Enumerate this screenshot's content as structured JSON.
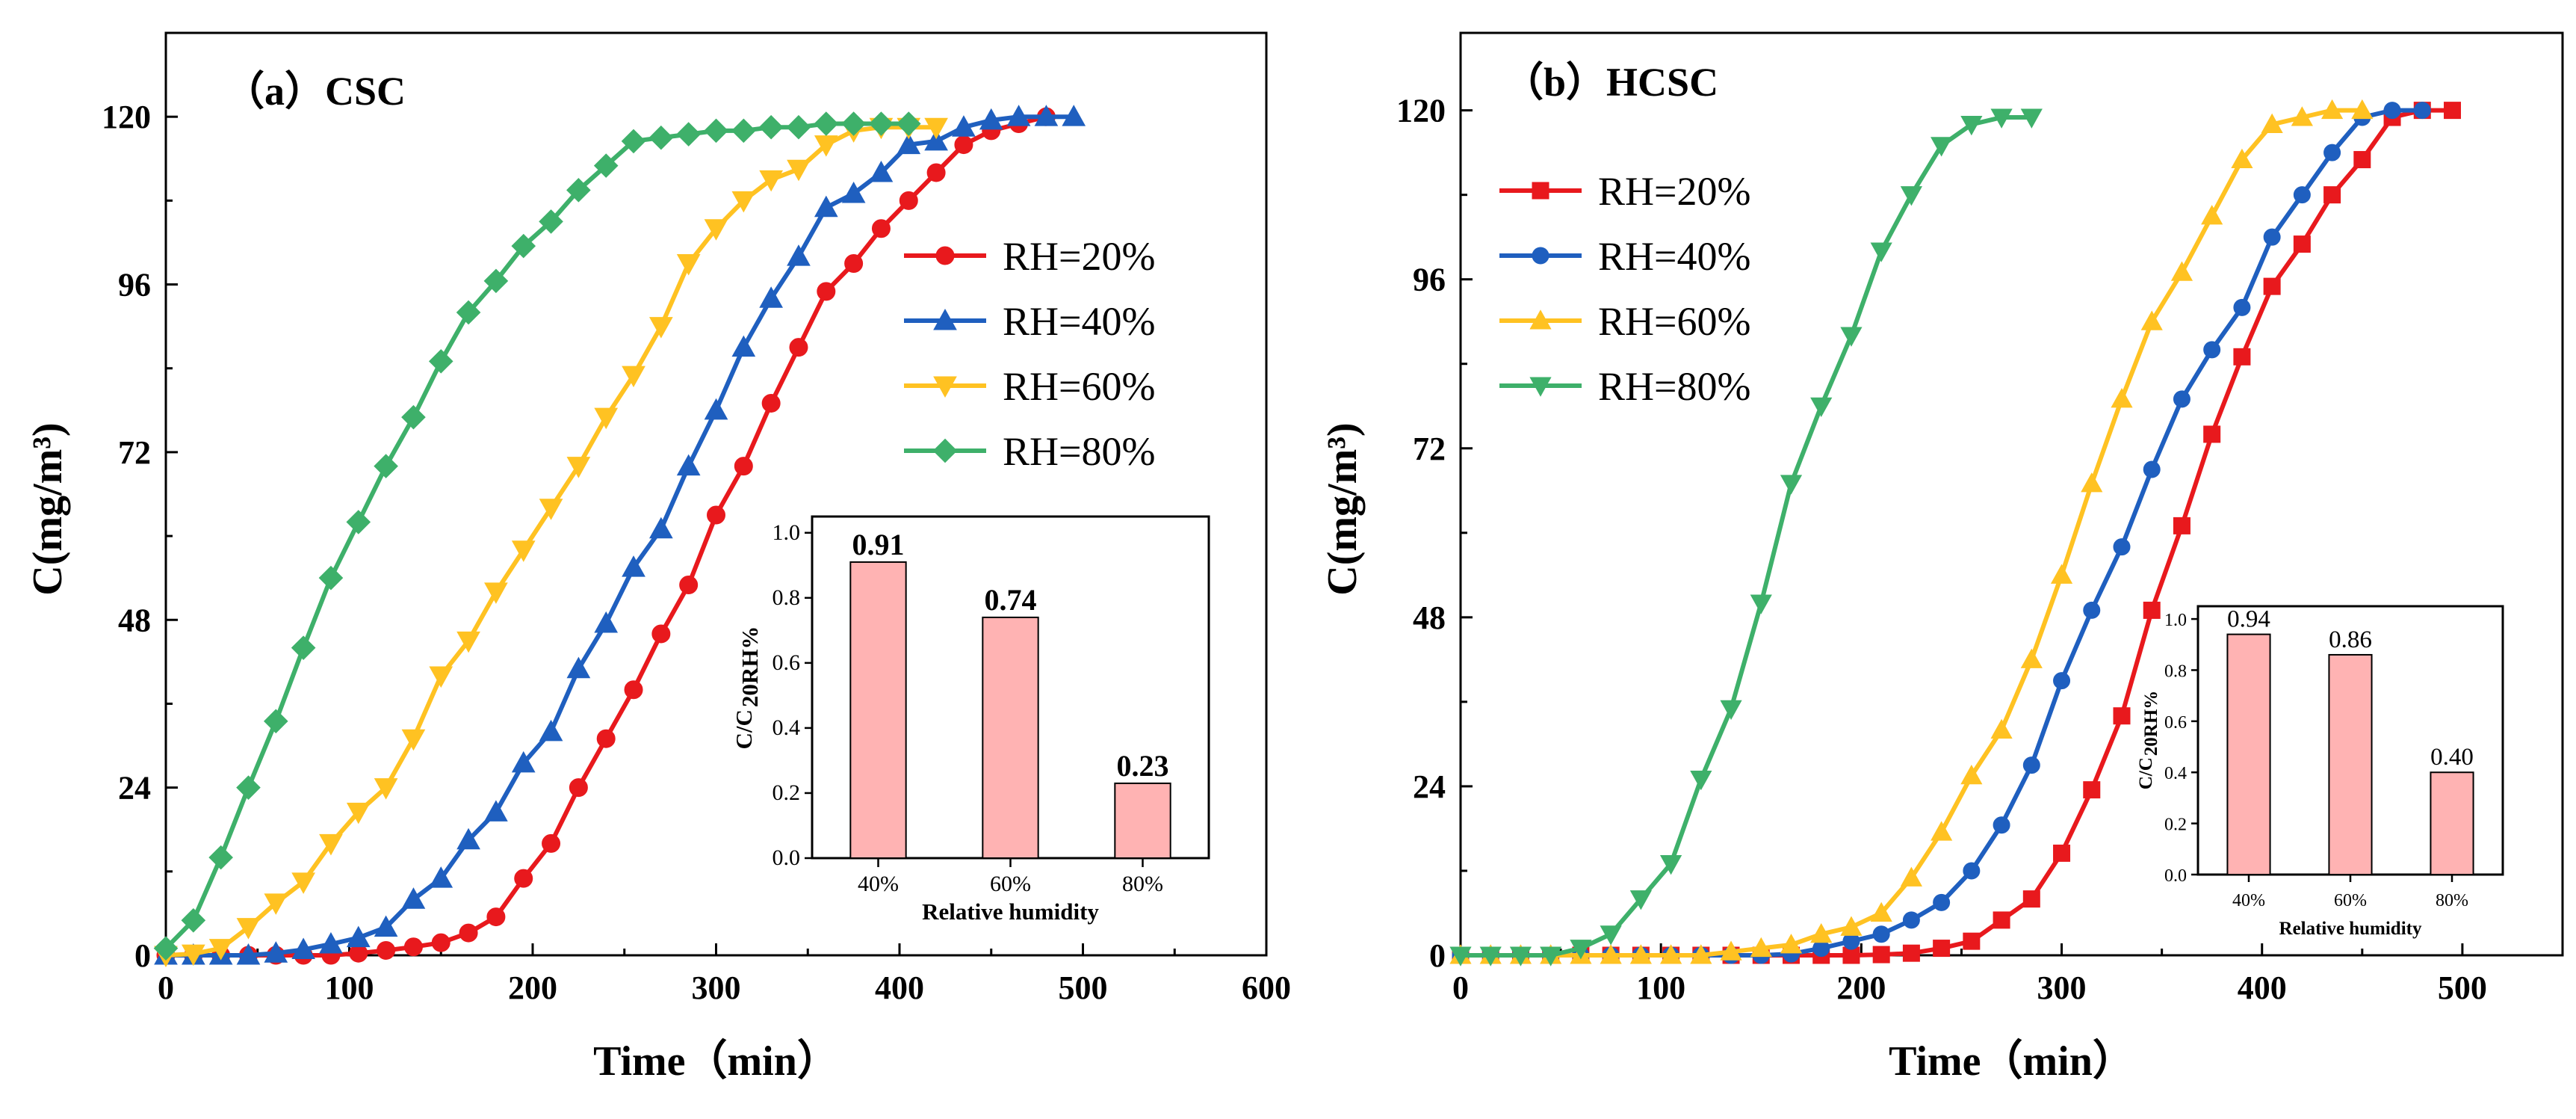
{
  "chart_data": [
    {
      "id": "a",
      "type": "line",
      "title": "（a）CSC",
      "xlabel": "Time（min）",
      "ylabel": "C(mg/m³)",
      "xlim": [
        0,
        600
      ],
      "ylim": [
        0,
        132
      ],
      "xticks": [
        0,
        100,
        200,
        300,
        400,
        500,
        600
      ],
      "yticks": [
        0,
        24,
        48,
        72,
        96,
        120
      ],
      "legend_position": "right",
      "series": [
        {
          "name": "RH=20%",
          "color": "#e8191d",
          "marker": "circle",
          "x": [
            0,
            15,
            30,
            45,
            60,
            75,
            90,
            105,
            120,
            135,
            150,
            165,
            180,
            195,
            210,
            225,
            240,
            255,
            270,
            285,
            300,
            315,
            330,
            345,
            360,
            375,
            390,
            405,
            420,
            435,
            450,
            465,
            480
          ],
          "y": [
            0,
            0,
            0,
            0,
            0,
            0,
            0,
            0.3,
            0.7,
            1.2,
            1.8,
            3.2,
            5.5,
            11,
            16,
            24,
            31,
            38,
            46,
            53,
            63,
            70,
            79,
            87,
            95,
            99,
            104,
            108,
            112,
            116,
            118,
            119,
            120
          ]
        },
        {
          "name": "RH=40%",
          "color": "#1f5fbf",
          "marker": "triangle-up",
          "x": [
            0,
            15,
            30,
            45,
            60,
            75,
            90,
            105,
            120,
            135,
            150,
            165,
            180,
            195,
            210,
            225,
            240,
            255,
            270,
            285,
            300,
            315,
            330,
            345,
            360,
            375,
            390,
            405,
            420,
            435,
            450,
            465,
            480,
            495
          ],
          "y": [
            0,
            0,
            0,
            0,
            0.3,
            0.8,
            1.6,
            2.5,
            4,
            8,
            11,
            16.5,
            20.5,
            27.5,
            32,
            41,
            47.5,
            55.5,
            61,
            70,
            78,
            87,
            94,
            100,
            107,
            109,
            112,
            116,
            116.5,
            118.5,
            119.5,
            120,
            120,
            120
          ]
        },
        {
          "name": "RH=60%",
          "color": "#ffc222",
          "marker": "triangle-down",
          "x": [
            0,
            15,
            30,
            45,
            60,
            75,
            90,
            105,
            120,
            135,
            150,
            165,
            180,
            195,
            210,
            225,
            240,
            255,
            270,
            285,
            300,
            315,
            330,
            345,
            360,
            375,
            390,
            405,
            420
          ],
          "y": [
            0,
            0.2,
            1,
            4,
            7.5,
            10.5,
            16,
            20.5,
            24,
            31,
            40,
            45,
            52,
            58,
            64,
            70,
            77,
            83,
            90,
            99,
            104,
            108,
            111,
            112.5,
            116,
            118,
            118.5,
            118.5,
            118.5
          ]
        },
        {
          "name": "RH=80%",
          "color": "#3eb06a",
          "marker": "diamond",
          "x": [
            0,
            15,
            30,
            45,
            60,
            75,
            90,
            105,
            120,
            135,
            150,
            165,
            180,
            195,
            210,
            225,
            240,
            255,
            270,
            285,
            300,
            315,
            330,
            345,
            360,
            375,
            390,
            405
          ],
          "y": [
            1,
            5,
            14,
            24,
            33.5,
            44,
            54,
            62,
            70,
            77,
            85,
            92,
            96.5,
            101.5,
            105,
            109.5,
            113,
            116.5,
            117,
            117.5,
            118,
            118,
            118.5,
            118.5,
            119,
            119,
            119,
            119
          ]
        }
      ],
      "inset": {
        "type": "bar",
        "categories": [
          "40%",
          "60%",
          "80%"
        ],
        "values": [
          0.91,
          0.74,
          0.23
        ],
        "value_labels": [
          "0.91",
          "0.74",
          "0.23"
        ],
        "ylim": [
          0,
          1.05
        ],
        "yticks": [
          "0.0",
          "0.2",
          "0.4",
          "0.6",
          "0.8",
          "1.0"
        ],
        "xlabel": "Relative humidity",
        "ylabel_main": "C/C",
        "ylabel_sub": "20RH%",
        "bar_color": "#ffb3b3"
      }
    },
    {
      "id": "b",
      "type": "line",
      "title": "（b）HCSC",
      "xlabel": "Time（min）",
      "ylabel": "C(mg/m³)",
      "xlim": [
        0,
        550
      ],
      "ylim": [
        0,
        131
      ],
      "xticks": [
        0,
        100,
        200,
        300,
        400,
        500
      ],
      "yticks": [
        0,
        24,
        48,
        72,
        96,
        120
      ],
      "legend_position": "top-left",
      "series": [
        {
          "name": "RH=20%",
          "color": "#e8191d",
          "marker": "square",
          "x": [
            0,
            15,
            30,
            45,
            60,
            75,
            90,
            105,
            120,
            135,
            150,
            165,
            180,
            195,
            210,
            225,
            240,
            255,
            270,
            285,
            300,
            315,
            330,
            345,
            360,
            375,
            390,
            405,
            420,
            435,
            450,
            465,
            480,
            495
          ],
          "y": [
            0,
            0,
            0,
            0,
            0,
            0,
            0,
            0,
            0,
            0,
            0,
            0,
            0,
            0,
            0.1,
            0.3,
            1,
            2,
            5,
            8,
            14.5,
            23.5,
            34,
            49,
            61,
            74,
            85,
            95,
            101,
            108,
            113,
            119,
            120,
            120
          ]
        },
        {
          "name": "RH=40%",
          "color": "#1f5fbf",
          "marker": "circle",
          "x": [
            0,
            15,
            30,
            45,
            60,
            75,
            90,
            105,
            120,
            135,
            150,
            165,
            180,
            195,
            210,
            225,
            240,
            255,
            270,
            285,
            300,
            315,
            330,
            345,
            360,
            375,
            390,
            405,
            420,
            435,
            450,
            465,
            480
          ],
          "y": [
            0,
            0,
            0,
            0,
            0,
            0,
            0,
            0,
            0,
            0,
            0,
            0.2,
            1,
            2,
            3,
            5,
            7.5,
            12,
            18.5,
            27,
            39,
            49,
            58,
            69,
            79,
            86,
            92,
            102,
            108,
            114,
            119,
            120,
            120
          ]
        },
        {
          "name": "RH=60%",
          "color": "#ffc222",
          "marker": "triangle-up",
          "x": [
            0,
            15,
            30,
            45,
            60,
            75,
            90,
            105,
            120,
            135,
            150,
            165,
            180,
            195,
            210,
            225,
            240,
            255,
            270,
            285,
            300,
            315,
            330,
            345,
            360,
            375,
            390,
            405,
            420,
            435,
            450
          ],
          "y": [
            0,
            0,
            0,
            0,
            0,
            0,
            0,
            0,
            0,
            0.5,
            1,
            1.5,
            3,
            4,
            6,
            11,
            17.5,
            25.5,
            32,
            42,
            54,
            67,
            79,
            90,
            97,
            105,
            113,
            118,
            119,
            120,
            120
          ]
        },
        {
          "name": "RH=80%",
          "color": "#3eb06a",
          "marker": "triangle-down",
          "x": [
            0,
            15,
            30,
            45,
            60,
            75,
            90,
            105,
            120,
            135,
            150,
            165,
            180,
            195,
            210,
            225,
            240,
            255,
            270,
            285
          ],
          "y": [
            0,
            0,
            0,
            0,
            1,
            3,
            8,
            13,
            25,
            35,
            50,
            67,
            78,
            88,
            100,
            108,
            115,
            118,
            119,
            119
          ]
        }
      ],
      "inset": {
        "type": "bar",
        "categories": [
          "40%",
          "60%",
          "80%"
        ],
        "values": [
          0.94,
          0.86,
          0.4
        ],
        "value_labels": [
          "0.94",
          "0.86",
          "0.40"
        ],
        "ylim": [
          0,
          1.05
        ],
        "yticks": [
          "0.0",
          "0.2",
          "0.4",
          "0.6",
          "0.8",
          "1.0"
        ],
        "xlabel": "Relative humidity",
        "ylabel_main": "C/C",
        "ylabel_sub": "20RH%",
        "bar_color": "#ffb3b3"
      }
    }
  ]
}
